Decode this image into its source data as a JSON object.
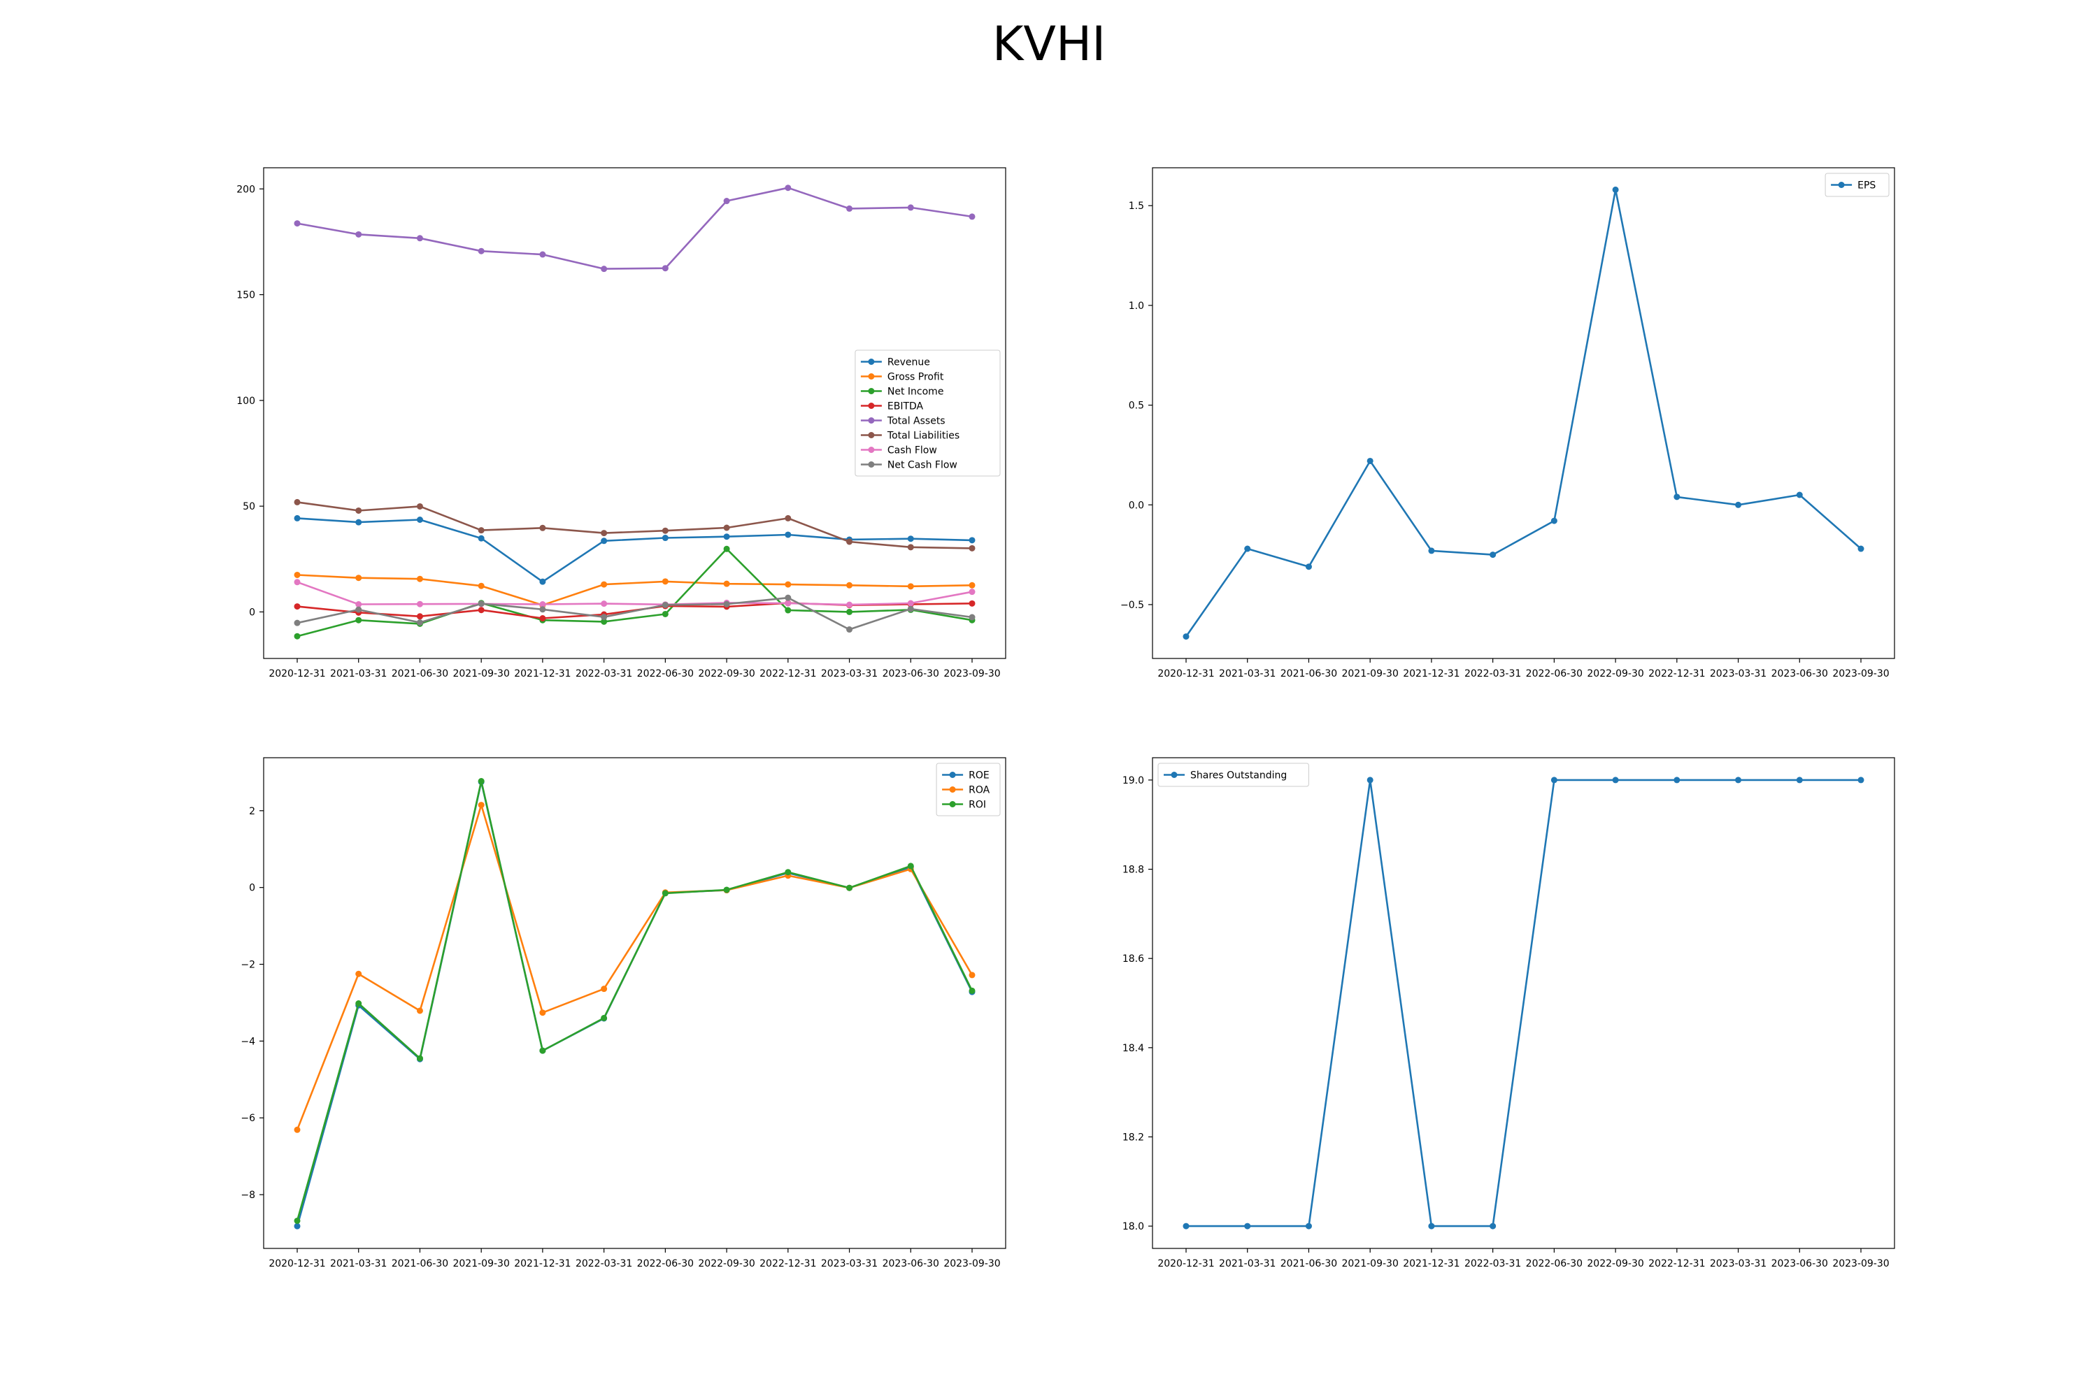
{
  "figure_title": "KVHI",
  "dates": [
    "2020-12-31",
    "2021-03-31",
    "2021-06-30",
    "2021-09-30",
    "2021-12-31",
    "2022-03-31",
    "2022-06-30",
    "2022-09-30",
    "2022-12-31",
    "2023-03-31",
    "2023-06-30",
    "2023-09-30"
  ],
  "chart_data": [
    {
      "type": "line",
      "x": [
        "2020-12-31",
        "2021-03-31",
        "2021-06-30",
        "2021-09-30",
        "2021-12-31",
        "2022-03-31",
        "2022-06-30",
        "2022-09-30",
        "2022-12-31",
        "2023-03-31",
        "2023-06-30",
        "2023-09-30"
      ],
      "ylim": [
        -22,
        210
      ],
      "yticks": [
        0,
        50,
        100,
        150,
        200
      ],
      "legend": "center-right",
      "grid": false,
      "series": [
        {
          "name": "Revenue",
          "color": "#1f77b4",
          "values": [
            44.3,
            42.4,
            43.6,
            34.8,
            14.3,
            33.6,
            35.0,
            35.6,
            36.5,
            34.2,
            34.6,
            33.9
          ]
        },
        {
          "name": "Gross Profit",
          "color": "#ff7f0e",
          "values": [
            17.5,
            16.1,
            15.6,
            12.3,
            3.2,
            13.0,
            14.4,
            13.3,
            13.0,
            12.6,
            12.1,
            12.6
          ]
        },
        {
          "name": "Net Income",
          "color": "#2ca02c",
          "values": [
            -11.5,
            -3.9,
            -5.6,
            4.2,
            -3.9,
            -4.6,
            -1.0,
            29.8,
            0.8,
            0.0,
            1.0,
            -3.9
          ]
        },
        {
          "name": "EBITDA",
          "color": "#d62728",
          "values": [
            2.6,
            -0.3,
            -2.1,
            0.9,
            -3.0,
            -1.2,
            2.8,
            2.5,
            4.2,
            3.2,
            3.6,
            4.0
          ]
        },
        {
          "name": "Total Assets",
          "color": "#9467bd",
          "values": [
            183.7,
            178.5,
            176.7,
            170.6,
            169.0,
            162.2,
            162.5,
            194.3,
            200.5,
            190.7,
            191.2,
            186.9
          ]
        },
        {
          "name": "Total Liabilities",
          "color": "#8c564b",
          "values": [
            51.9,
            47.9,
            49.9,
            38.6,
            39.7,
            37.3,
            38.4,
            39.8,
            44.3,
            33.2,
            30.6,
            30.1
          ]
        },
        {
          "name": "Cash Flow",
          "color": "#e377c2",
          "values": [
            14.1,
            3.6,
            3.7,
            3.8,
            3.6,
            3.9,
            3.5,
            4.3,
            4.1,
            3.4,
            4.1,
            9.5
          ]
        },
        {
          "name": "Net Cash Flow",
          "color": "#7f7f7f",
          "values": [
            -5.2,
            1.1,
            -5.0,
            3.9,
            1.2,
            -2.4,
            3.3,
            3.7,
            6.7,
            -8.3,
            1.4,
            -2.5
          ]
        }
      ]
    },
    {
      "type": "line",
      "x": [
        "2020-12-31",
        "2021-03-31",
        "2021-06-30",
        "2021-09-30",
        "2021-12-31",
        "2022-03-31",
        "2022-06-30",
        "2022-09-30",
        "2022-12-31",
        "2023-03-31",
        "2023-06-30",
        "2023-09-30"
      ],
      "ylim": [
        -0.77,
        1.69
      ],
      "yticks": [
        -0.5,
        0.0,
        0.5,
        1.0,
        1.5
      ],
      "ytick_labels": [
        "−0.5",
        "0.0",
        "0.5",
        "1.0",
        "1.5"
      ],
      "legend": "top-right",
      "grid": false,
      "series": [
        {
          "name": "EPS",
          "color": "#1f77b4",
          "values": [
            -0.66,
            -0.22,
            -0.31,
            0.22,
            -0.23,
            -0.25,
            -0.08,
            1.58,
            0.04,
            0.0,
            0.05,
            -0.22
          ]
        }
      ]
    },
    {
      "type": "line",
      "x": [
        "2020-12-31",
        "2021-03-31",
        "2021-06-30",
        "2021-09-30",
        "2021-12-31",
        "2022-03-31",
        "2022-06-30",
        "2022-09-30",
        "2022-12-31",
        "2023-03-31",
        "2023-06-30",
        "2023-09-30"
      ],
      "ylim": [
        -9.4,
        3.38
      ],
      "yticks": [
        -8,
        -6,
        -4,
        -2,
        0,
        2
      ],
      "ytick_labels": [
        "−8",
        "−6",
        "−4",
        "−2",
        "0",
        "2"
      ],
      "legend": "top-right",
      "grid": false,
      "series": [
        {
          "name": "ROE",
          "color": "#1f77b4",
          "values": [
            -8.82,
            -3.07,
            -4.47,
            2.75,
            -4.25,
            -3.41,
            -0.14,
            -0.07,
            0.38,
            -0.01,
            0.53,
            -2.72
          ]
        },
        {
          "name": "ROA",
          "color": "#ff7f0e",
          "values": [
            -6.31,
            -2.25,
            -3.21,
            2.15,
            -3.26,
            -2.64,
            -0.13,
            -0.07,
            0.31,
            -0.01,
            0.48,
            -2.28
          ]
        },
        {
          "name": "ROI",
          "color": "#2ca02c",
          "values": [
            -8.68,
            -3.02,
            -4.45,
            2.77,
            -4.25,
            -3.4,
            -0.15,
            -0.06,
            0.4,
            -0.01,
            0.56,
            -2.69
          ]
        }
      ]
    },
    {
      "type": "line",
      "x": [
        "2020-12-31",
        "2021-03-31",
        "2021-06-30",
        "2021-09-30",
        "2021-12-31",
        "2022-03-31",
        "2022-06-30",
        "2022-09-30",
        "2022-12-31",
        "2023-03-31",
        "2023-06-30",
        "2023-09-30"
      ],
      "ylim": [
        17.95,
        19.05
      ],
      "yticks": [
        18.0,
        18.2,
        18.4,
        18.6,
        18.8,
        19.0
      ],
      "ytick_labels": [
        "18.0",
        "18.2",
        "18.4",
        "18.6",
        "18.8",
        "19.0"
      ],
      "legend": "top-left",
      "grid": false,
      "series": [
        {
          "name": "Shares Outstanding",
          "color": "#1f77b4",
          "values": [
            18,
            18,
            18,
            19,
            18,
            18,
            19,
            19,
            19,
            19,
            19,
            19
          ]
        }
      ]
    }
  ]
}
